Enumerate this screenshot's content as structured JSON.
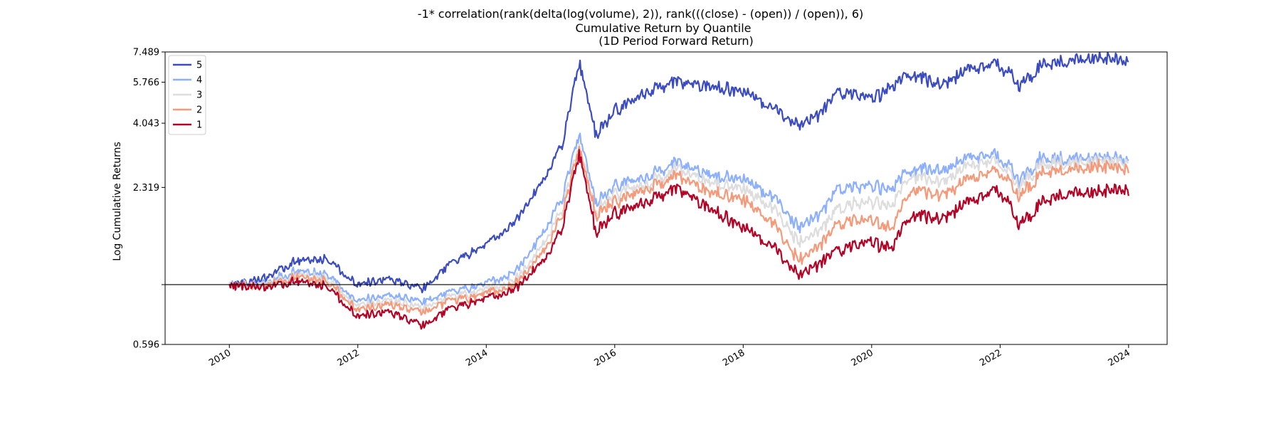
{
  "chart_data": {
    "type": "line",
    "title": "-1* correlation(rank(delta(log(volume), 2)), rank(((close) - (open)) / (open)), 6)",
    "subtitle_line1": "Cumulative Return by Quantile",
    "subtitle_line2": "(1D Period Forward Return)",
    "xlabel": "",
    "ylabel": "Log Cumulative Returns",
    "y_scale": "log",
    "ylim": [
      0.596,
      7.489
    ],
    "xlim": [
      2009.0,
      2024.6
    ],
    "y_ticks": [
      {
        "value": 0.596,
        "label": "0.596"
      },
      {
        "value": 1.0,
        "label": ""
      },
      {
        "value": 2.319,
        "label": "2.319"
      },
      {
        "value": 4.043,
        "label": "4.043"
      },
      {
        "value": 5.766,
        "label": "5.766"
      },
      {
        "value": 7.489,
        "label": "7.489"
      }
    ],
    "x_ticks": [
      {
        "value": 2010,
        "label": "2010"
      },
      {
        "value": 2012,
        "label": "2012"
      },
      {
        "value": 2014,
        "label": "2014"
      },
      {
        "value": 2016,
        "label": "2016"
      },
      {
        "value": 2018,
        "label": "2018"
      },
      {
        "value": 2020,
        "label": "2020"
      },
      {
        "value": 2022,
        "label": "2022"
      },
      {
        "value": 2024,
        "label": "2024"
      }
    ],
    "reference_line": 1.0,
    "legend_placement": "upper-left",
    "grid": false,
    "x": [
      2010.0,
      2010.5,
      2011.0,
      2011.5,
      2012.0,
      2012.5,
      2013.0,
      2013.5,
      2014.0,
      2014.5,
      2015.0,
      2015.2,
      2015.45,
      2015.7,
      2016.0,
      2016.5,
      2017.0,
      2017.5,
      2018.0,
      2018.5,
      2018.85,
      2019.2,
      2019.5,
      2020.0,
      2020.3,
      2020.6,
      2021.0,
      2021.5,
      2022.0,
      2022.3,
      2022.6,
      2023.0,
      2023.5,
      2024.0
    ],
    "series": [
      {
        "name": "5",
        "color": "#3b4cc0",
        "values": [
          1.0,
          1.04,
          1.22,
          1.25,
          1.0,
          1.05,
          0.96,
          1.22,
          1.4,
          1.78,
          2.72,
          3.5,
          6.8,
          3.7,
          4.5,
          5.3,
          5.8,
          5.5,
          5.35,
          4.5,
          4.0,
          4.4,
          5.3,
          5.0,
          5.45,
          6.3,
          5.6,
          6.3,
          6.8,
          5.5,
          6.6,
          6.9,
          7.2,
          6.8
        ]
      },
      {
        "name": "4",
        "color": "#8db0fe",
        "values": [
          1.0,
          1.0,
          1.12,
          1.1,
          0.87,
          0.91,
          0.86,
          0.94,
          1.0,
          1.14,
          1.72,
          2.2,
          3.65,
          2.05,
          2.35,
          2.55,
          2.85,
          2.55,
          2.5,
          2.1,
          1.65,
          1.85,
          2.3,
          2.35,
          2.25,
          2.75,
          2.65,
          2.95,
          3.05,
          2.45,
          2.95,
          2.95,
          3.05,
          2.9
        ]
      },
      {
        "name": "3",
        "color": "#dddddd",
        "values": [
          1.0,
          0.99,
          1.09,
          1.06,
          0.84,
          0.87,
          0.82,
          0.9,
          0.95,
          1.06,
          1.55,
          2.0,
          3.3,
          1.9,
          2.2,
          2.4,
          2.7,
          2.4,
          2.3,
          1.9,
          1.45,
          1.6,
          1.95,
          2.05,
          1.95,
          2.6,
          2.4,
          2.75,
          2.9,
          2.3,
          2.8,
          2.85,
          2.95,
          2.85
        ]
      },
      {
        "name": "2",
        "color": "#f49a7b",
        "values": [
          1.0,
          0.98,
          1.07,
          1.03,
          0.81,
          0.84,
          0.79,
          0.87,
          0.92,
          1.02,
          1.45,
          1.9,
          3.2,
          1.85,
          2.05,
          2.3,
          2.55,
          2.2,
          2.1,
          1.65,
          1.25,
          1.4,
          1.7,
          1.75,
          1.6,
          2.3,
          2.15,
          2.45,
          2.7,
          2.1,
          2.6,
          2.7,
          2.8,
          2.7
        ]
      },
      {
        "name": "1",
        "color": "#b40426",
        "values": [
          1.0,
          0.97,
          1.03,
          0.99,
          0.76,
          0.79,
          0.7,
          0.82,
          0.88,
          0.98,
          1.32,
          1.7,
          3.1,
          1.6,
          1.85,
          2.05,
          2.3,
          1.9,
          1.65,
          1.35,
          1.1,
          1.2,
          1.35,
          1.45,
          1.35,
          1.85,
          1.75,
          2.0,
          2.3,
          1.65,
          2.0,
          2.2,
          2.25,
          2.25
        ]
      }
    ]
  }
}
